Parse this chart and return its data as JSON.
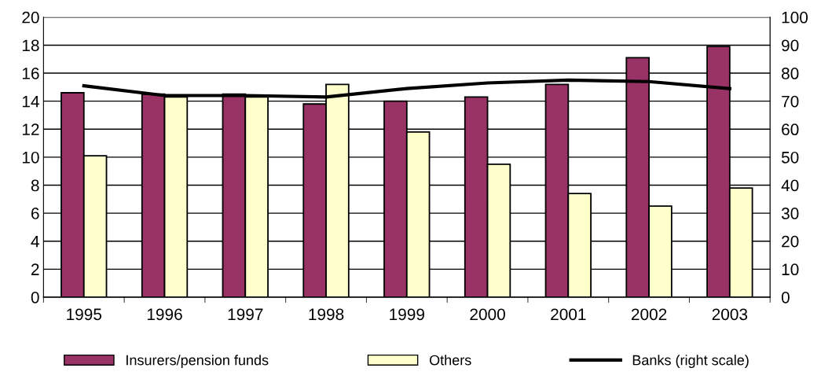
{
  "chart_data": {
    "type": "bar",
    "categories": [
      "1995",
      "1996",
      "1997",
      "1998",
      "1999",
      "2000",
      "2001",
      "2002",
      "2003"
    ],
    "series": [
      {
        "name": "Insurers/pension funds",
        "color": "#993366",
        "values": [
          14.6,
          14.5,
          14.5,
          13.8,
          14.0,
          14.3,
          15.2,
          17.1,
          17.9
        ]
      },
      {
        "name": "Others",
        "color": "#ffffcc",
        "values": [
          10.1,
          14.3,
          14.3,
          15.2,
          11.8,
          9.5,
          7.4,
          6.5,
          7.8
        ]
      },
      {
        "name": "Banks (right scale)",
        "color": "#000000",
        "type": "line",
        "axis": "y2",
        "values": [
          75.5,
          72,
          72,
          71.5,
          74.5,
          76.5,
          77.5,
          77,
          74.5
        ]
      }
    ],
    "ylim": [
      0,
      20
    ],
    "yticks": [
      0,
      2,
      4,
      6,
      8,
      10,
      12,
      14,
      16,
      18,
      20
    ],
    "y2lim": [
      0,
      100
    ],
    "y2ticks": [
      0,
      10,
      20,
      30,
      40,
      50,
      60,
      70,
      80,
      90,
      100
    ],
    "grid": "y",
    "legend": "bottom"
  }
}
